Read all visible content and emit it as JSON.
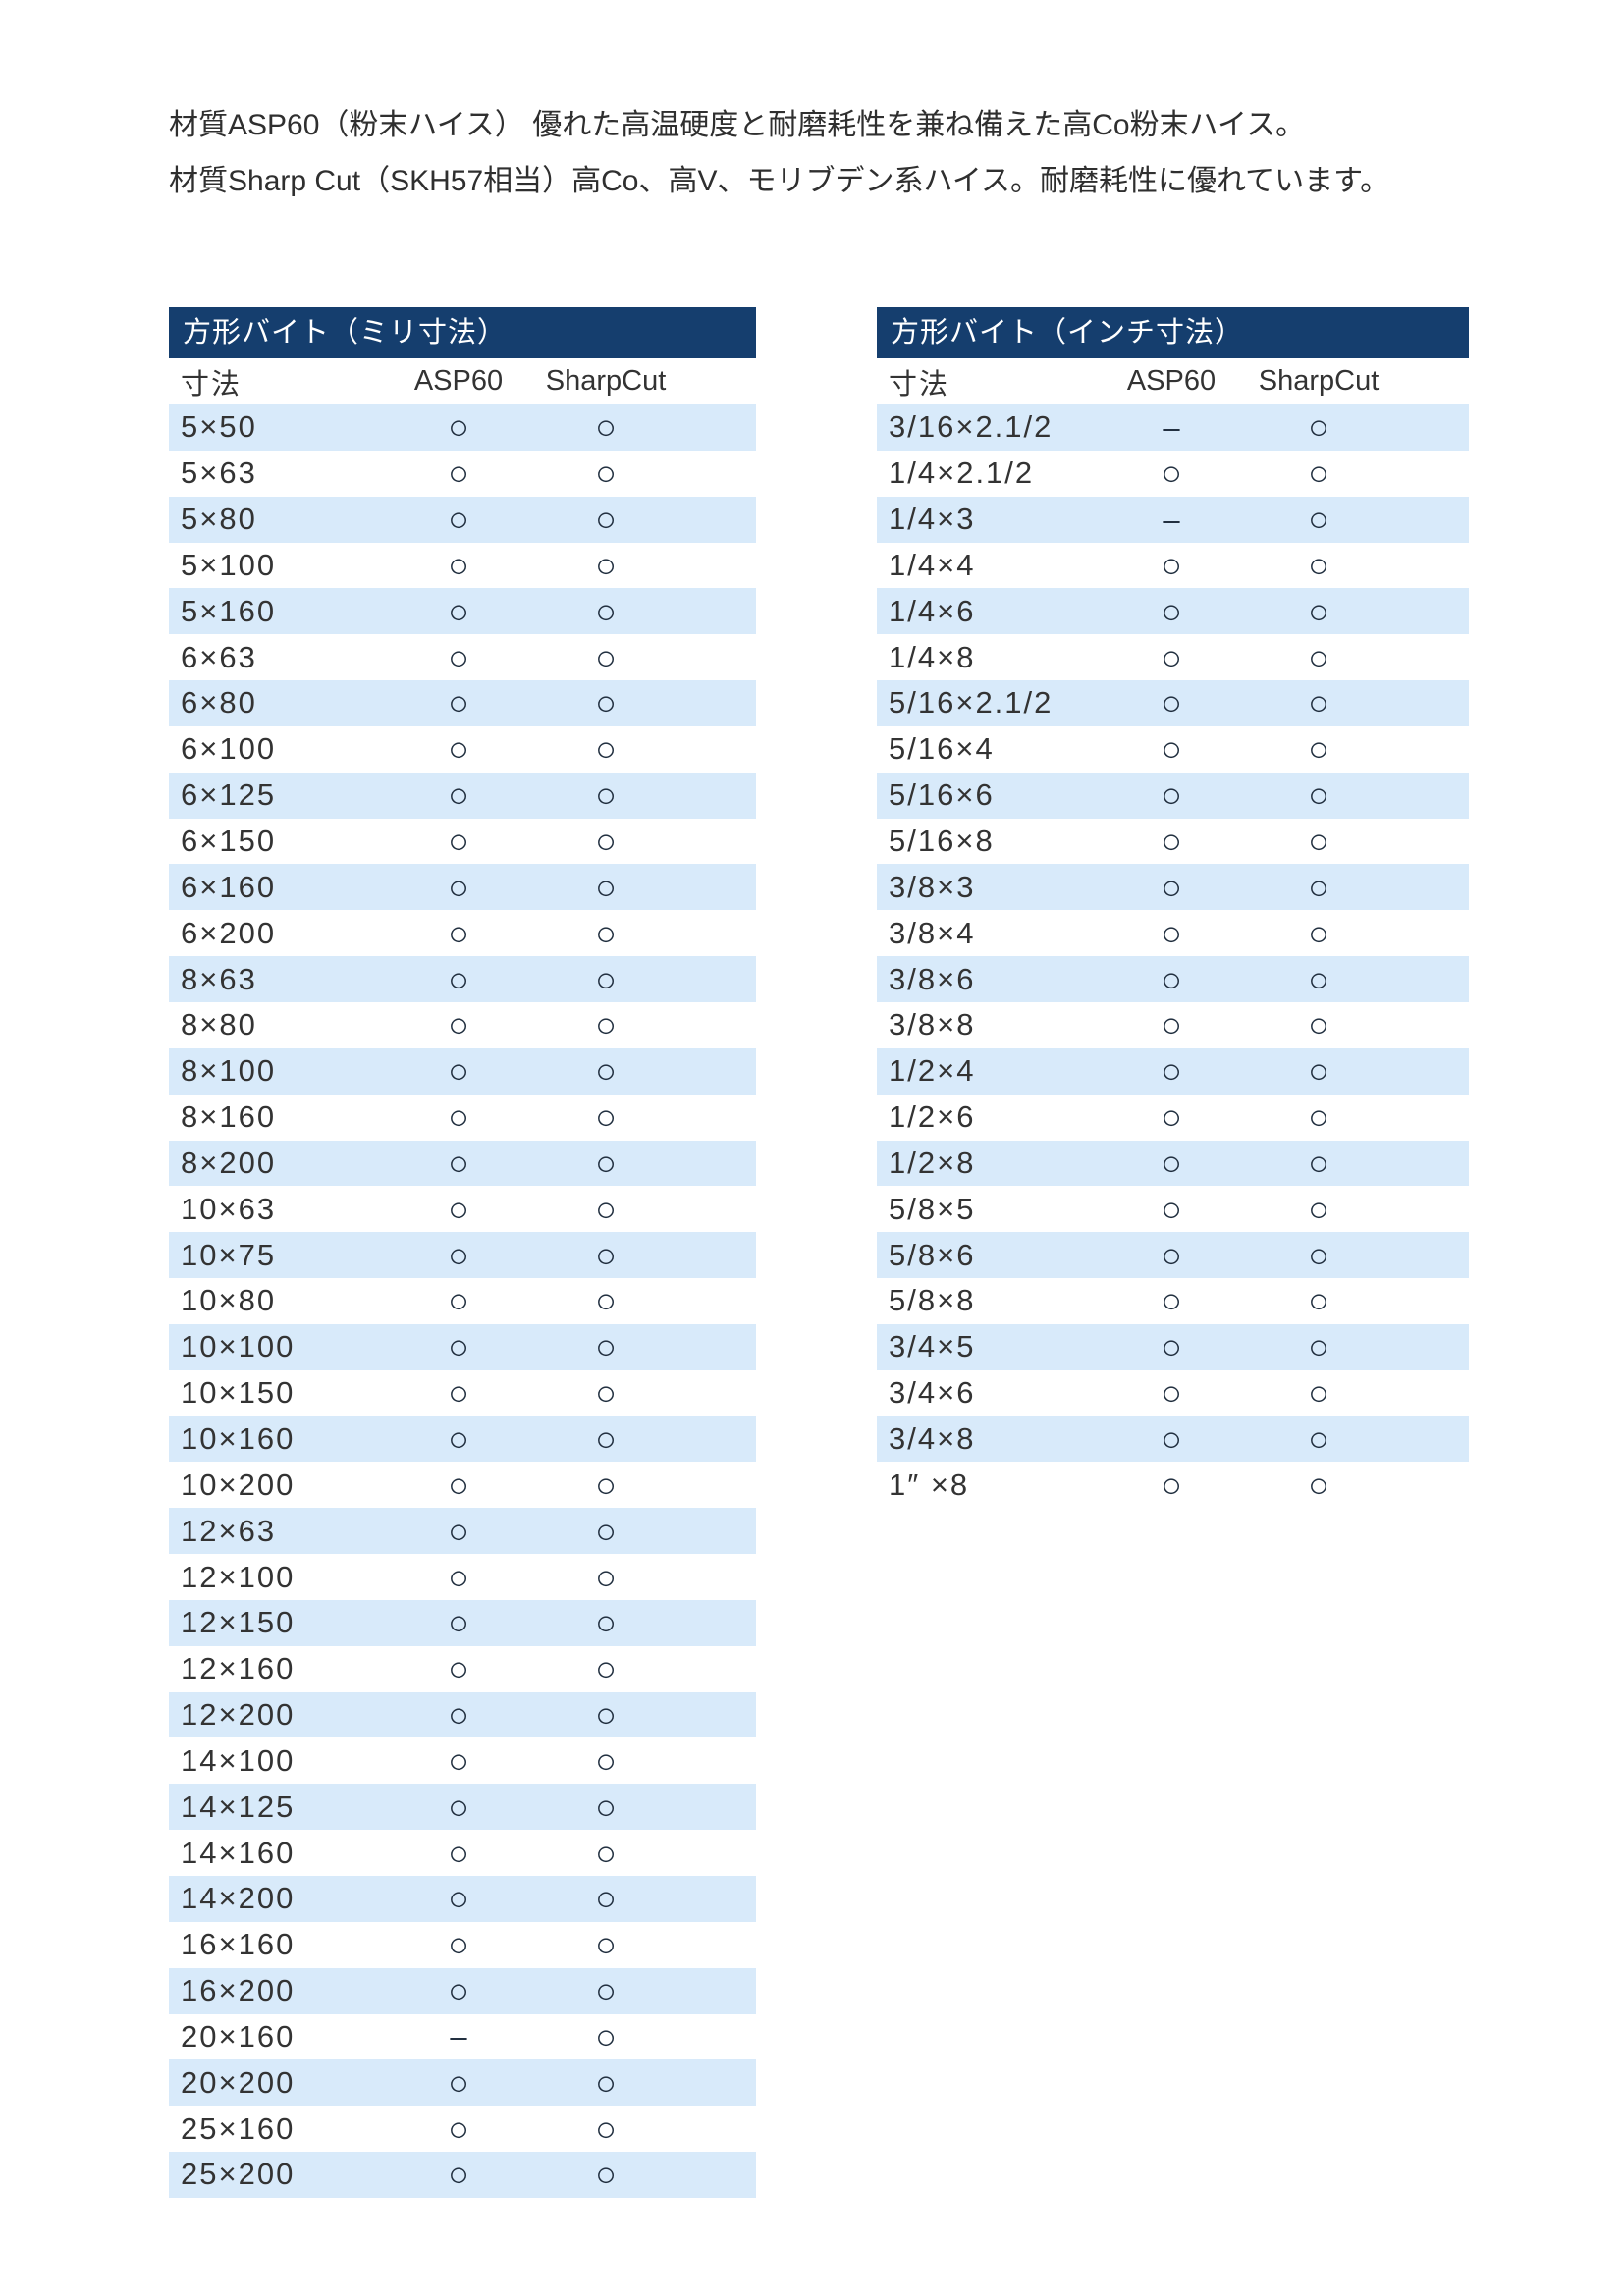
{
  "intro": {
    "line1": "材質ASP60（粉末ハイス） 優れた高温硬度と耐磨耗性を兼ね備えた高Co粉末ハイス。",
    "line2": "材質Sharp Cut（SKH57相当）高Co、高V、モリブデン系ハイス。耐磨耗性に優れています。"
  },
  "colors": {
    "header_bg": "#153e6e",
    "row_alt_bg": "#d8eafa",
    "text": "#333333",
    "mark": "#223040"
  },
  "marks": {
    "available": "○",
    "not_available": "–"
  },
  "tables": [
    {
      "id": "mm",
      "title": "方形バイト（ミリ寸法）",
      "columns": [
        "寸法",
        "ASP60",
        "SharpCut"
      ],
      "rows": [
        [
          "5×50",
          "○",
          "○"
        ],
        [
          "5×63",
          "○",
          "○"
        ],
        [
          "5×80",
          "○",
          "○"
        ],
        [
          "5×100",
          "○",
          "○"
        ],
        [
          "5×160",
          "○",
          "○"
        ],
        [
          "6×63",
          "○",
          "○"
        ],
        [
          "6×80",
          "○",
          "○"
        ],
        [
          "6×100",
          "○",
          "○"
        ],
        [
          "6×125",
          "○",
          "○"
        ],
        [
          "6×150",
          "○",
          "○"
        ],
        [
          "6×160",
          "○",
          "○"
        ],
        [
          "6×200",
          "○",
          "○"
        ],
        [
          "8×63",
          "○",
          "○"
        ],
        [
          "8×80",
          "○",
          "○"
        ],
        [
          "8×100",
          "○",
          "○"
        ],
        [
          "8×160",
          "○",
          "○"
        ],
        [
          "8×200",
          "○",
          "○"
        ],
        [
          "10×63",
          "○",
          "○"
        ],
        [
          "10×75",
          "○",
          "○"
        ],
        [
          "10×80",
          "○",
          "○"
        ],
        [
          "10×100",
          "○",
          "○"
        ],
        [
          "10×150",
          "○",
          "○"
        ],
        [
          "10×160",
          "○",
          "○"
        ],
        [
          "10×200",
          "○",
          "○"
        ],
        [
          "12×63",
          "○",
          "○"
        ],
        [
          "12×100",
          "○",
          "○"
        ],
        [
          "12×150",
          "○",
          "○"
        ],
        [
          "12×160",
          "○",
          "○"
        ],
        [
          "12×200",
          "○",
          "○"
        ],
        [
          "14×100",
          "○",
          "○"
        ],
        [
          "14×125",
          "○",
          "○"
        ],
        [
          "14×160",
          "○",
          "○"
        ],
        [
          "14×200",
          "○",
          "○"
        ],
        [
          "16×160",
          "○",
          "○"
        ],
        [
          "16×200",
          "○",
          "○"
        ],
        [
          "20×160",
          "–",
          "○"
        ],
        [
          "20×200",
          "○",
          "○"
        ],
        [
          "25×160",
          "○",
          "○"
        ],
        [
          "25×200",
          "○",
          "○"
        ]
      ]
    },
    {
      "id": "inch",
      "title": "方形バイト（インチ寸法）",
      "columns": [
        "寸法",
        "ASP60",
        "SharpCut"
      ],
      "rows": [
        [
          "3/16×2.1/2",
          "–",
          "○"
        ],
        [
          "1/4×2.1/2",
          "○",
          "○"
        ],
        [
          "1/4×3",
          "–",
          "○"
        ],
        [
          "1/4×4",
          "○",
          "○"
        ],
        [
          "1/4×6",
          "○",
          "○"
        ],
        [
          "1/4×8",
          "○",
          "○"
        ],
        [
          "5/16×2.1/2",
          "○",
          "○"
        ],
        [
          "5/16×4",
          "○",
          "○"
        ],
        [
          "5/16×6",
          "○",
          "○"
        ],
        [
          "5/16×8",
          "○",
          "○"
        ],
        [
          "3/8×3",
          "○",
          "○"
        ],
        [
          "3/8×4",
          "○",
          "○"
        ],
        [
          "3/8×6",
          "○",
          "○"
        ],
        [
          "3/8×8",
          "○",
          "○"
        ],
        [
          "1/2×4",
          "○",
          "○"
        ],
        [
          "1/2×6",
          "○",
          "○"
        ],
        [
          "1/2×8",
          "○",
          "○"
        ],
        [
          "5/8×5",
          "○",
          "○"
        ],
        [
          "5/8×6",
          "○",
          "○"
        ],
        [
          "5/8×8",
          "○",
          "○"
        ],
        [
          "3/4×5",
          "○",
          "○"
        ],
        [
          "3/4×6",
          "○",
          "○"
        ],
        [
          "3/4×8",
          "○",
          "○"
        ],
        [
          "1″ ×8",
          "○",
          "○"
        ]
      ]
    }
  ]
}
